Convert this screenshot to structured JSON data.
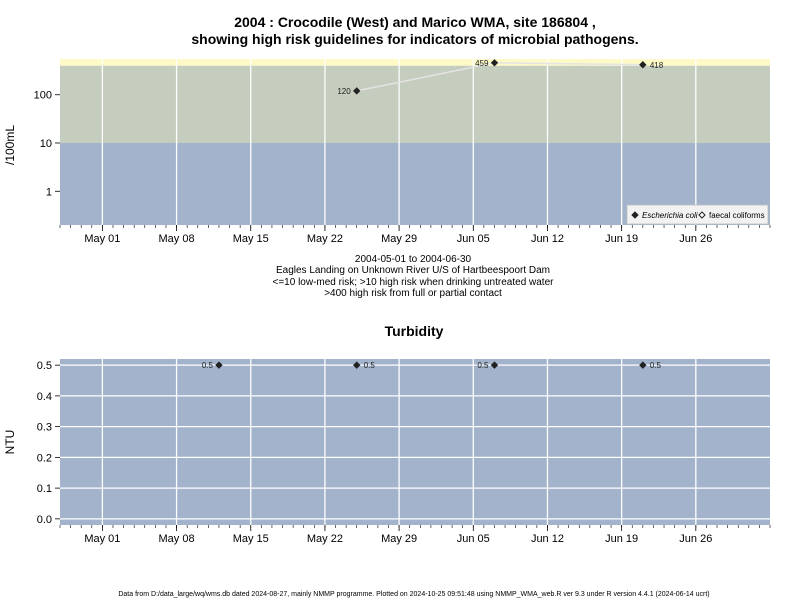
{
  "chart_data": [
    {
      "type": "scatter",
      "title_line1": "2004 : Crocodile (West) and Marico WMA, site 186804 ,",
      "title_line2": "showing high risk guidelines for indicators of microbial pathogens.",
      "ylabel": "/100mL",
      "y_scale": "log",
      "ylim": [
        0.2,
        550
      ],
      "yticks": [
        1,
        10,
        100
      ],
      "ytick_labels": [
        "1",
        "10",
        "100"
      ],
      "xlim": [
        "2004-04-27",
        "2004-07-03"
      ],
      "xticks": [
        "2004-05-01",
        "2004-05-08",
        "2004-05-15",
        "2004-05-22",
        "2004-05-29",
        "2004-06-05",
        "2004-06-12",
        "2004-06-19",
        "2004-06-26"
      ],
      "xtick_labels": [
        "May 01",
        "May 08",
        "May 15",
        "May 22",
        "May 29",
        "Jun 05",
        "Jun 12",
        "Jun 19",
        "Jun 26"
      ],
      "bands": [
        {
          "from": 0.2,
          "to": 10,
          "color": "#a2b3cb"
        },
        {
          "from": 10,
          "to": 400,
          "color": "#c5cdbe"
        },
        {
          "from": 400,
          "to": 550,
          "color": "#fdfac8"
        }
      ],
      "grid": true,
      "legend_position": "bottom-right",
      "series": [
        {
          "name": "Escherichia coli",
          "marker": "filled-diamond",
          "points": [
            {
              "x": "2004-05-25",
              "y": 120,
              "label": "120"
            },
            {
              "x": "2004-06-07",
              "y": 459,
              "label": "459"
            },
            {
              "x": "2004-06-21",
              "y": 418,
              "label": "418"
            }
          ]
        },
        {
          "name": "faecal coliforms",
          "marker": "open-diamond",
          "points": []
        }
      ],
      "notes": [
        "2004-05-01 to 2004-06-30",
        "Eagles Landing on Unknown River U/S of Hartbeespoort Dam",
        "<=10 low-med risk; >10 high risk when drinking untreated water",
        ">400 high risk from full or partial contact"
      ]
    },
    {
      "type": "scatter",
      "title": "Turbidity",
      "ylabel": "NTU",
      "ylim": [
        -0.02,
        0.52
      ],
      "yticks": [
        0.0,
        0.1,
        0.2,
        0.3,
        0.4,
        0.5
      ],
      "ytick_labels": [
        "0.0",
        "0.1",
        "0.2",
        "0.3",
        "0.4",
        "0.5"
      ],
      "xlim": [
        "2004-04-27",
        "2004-07-03"
      ],
      "xticks": [
        "2004-05-01",
        "2004-05-08",
        "2004-05-15",
        "2004-05-22",
        "2004-05-29",
        "2004-06-05",
        "2004-06-12",
        "2004-06-19",
        "2004-06-26"
      ],
      "xtick_labels": [
        "May 01",
        "May 08",
        "May 15",
        "May 22",
        "May 29",
        "Jun 05",
        "Jun 12",
        "Jun 19",
        "Jun 26"
      ],
      "background": "#a2b3cb",
      "grid": true,
      "series": [
        {
          "marker": "filled-diamond",
          "points": [
            {
              "x": "2004-05-12",
              "y": 0.5,
              "label": "0.5",
              "label_side": "left"
            },
            {
              "x": "2004-05-25",
              "y": 0.5,
              "label": "0.5",
              "label_side": "right"
            },
            {
              "x": "2004-06-07",
              "y": 0.5,
              "label": "0.5",
              "label_side": "left"
            },
            {
              "x": "2004-06-21",
              "y": 0.5,
              "label": "0.5",
              "label_side": "right"
            }
          ]
        }
      ]
    }
  ],
  "footer": "Data from D:/data_large/wq/wms.db dated 2024-08-27, mainly NMMP programme. Plotted on 2024-10-25 09:51:48 using NMMP_WMA_web.R ver 9.3 under R version 4.4.1 (2024-06-14 ucrt)"
}
